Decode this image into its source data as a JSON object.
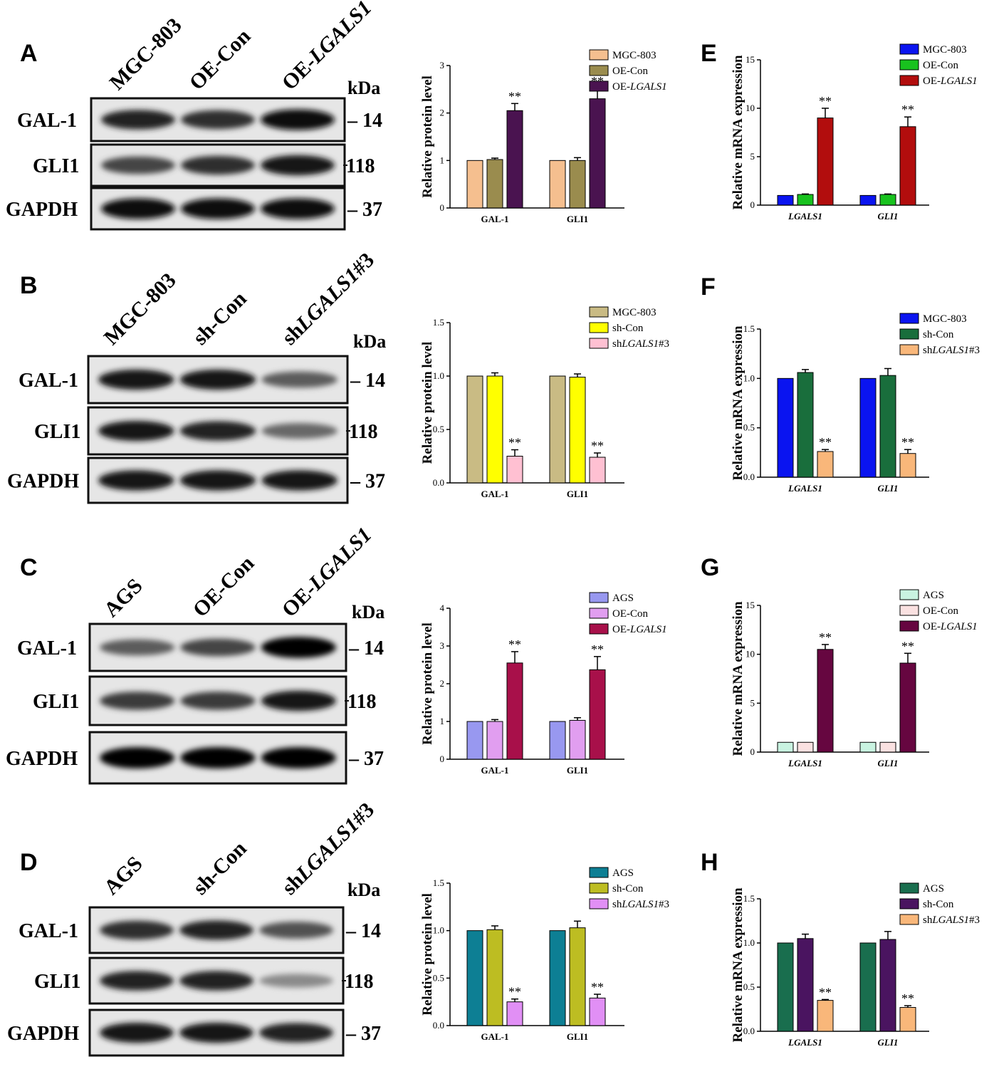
{
  "blots": [
    {
      "letter": "A",
      "lanes": [
        {
          "pre": "MGC-803",
          "it": ""
        },
        {
          "pre": "OE-Con",
          "it": ""
        },
        {
          "pre": "OE-",
          "it": "LGALS1"
        }
      ],
      "kda": "kDa",
      "rows": [
        {
          "label": "GAL-1",
          "mw": "14",
          "intensity": [
            0.85,
            0.8,
            0.95
          ]
        },
        {
          "label": "GLI1",
          "mw": "118",
          "intensity": [
            0.7,
            0.8,
            0.9
          ]
        },
        {
          "label": "GAPDH",
          "mw": "37",
          "intensity": [
            0.95,
            0.95,
            0.95
          ]
        }
      ]
    },
    {
      "letter": "B",
      "lanes": [
        {
          "pre": "MGC-803",
          "it": ""
        },
        {
          "pre": "sh-Con",
          "it": ""
        },
        {
          "pre": "sh",
          "it": "LGALS1",
          "post": "#3"
        }
      ],
      "kda": "kDa",
      "rows": [
        {
          "label": "GAL-1",
          "mw": "14",
          "intensity": [
            0.9,
            0.9,
            0.6
          ]
        },
        {
          "label": "GLI1",
          "mw": "118",
          "intensity": [
            0.9,
            0.85,
            0.55
          ]
        },
        {
          "label": "GAPDH",
          "mw": "37",
          "intensity": [
            0.9,
            0.9,
            0.9
          ]
        }
      ]
    },
    {
      "letter": "C",
      "lanes": [
        {
          "pre": "AGS",
          "it": ""
        },
        {
          "pre": "OE-Con",
          "it": ""
        },
        {
          "pre": "OE-",
          "it": "LGALS1"
        }
      ],
      "kda": "kDa",
      "rows": [
        {
          "label": "GAL-1",
          "mw": "14",
          "intensity": [
            0.6,
            0.7,
            0.98
          ]
        },
        {
          "label": "GLI1",
          "mw": "118",
          "intensity": [
            0.75,
            0.75,
            0.9
          ]
        },
        {
          "label": "GAPDH",
          "mw": "37",
          "intensity": [
            1.0,
            1.0,
            1.0
          ]
        }
      ]
    },
    {
      "letter": "D",
      "lanes": [
        {
          "pre": "AGS",
          "it": ""
        },
        {
          "pre": "sh-Con",
          "it": ""
        },
        {
          "pre": "sh",
          "it": "LGALS1",
          "post": "#3"
        }
      ],
      "kda": "kDa",
      "rows": [
        {
          "label": "GAL-1",
          "mw": "14",
          "intensity": [
            0.8,
            0.85,
            0.65
          ]
        },
        {
          "label": "GLI1",
          "mw": "118",
          "intensity": [
            0.85,
            0.85,
            0.4
          ]
        },
        {
          "label": "GAPDH",
          "mw": "37",
          "intensity": [
            0.9,
            0.9,
            0.85
          ]
        }
      ]
    }
  ],
  "chart_data": [
    {
      "type": "bar",
      "ylabel": "Relative protein level",
      "ylim": [
        0,
        3
      ],
      "yticks": [
        "0",
        "1",
        "2",
        "3"
      ],
      "categories": [
        {
          "text": "GAL-1",
          "italic": false
        },
        {
          "text": "GLI1",
          "italic": false
        }
      ],
      "series": [
        {
          "name": "MGC-803",
          "color": "#f5bf8f",
          "values": [
            1.0,
            1.0
          ],
          "errors": [
            0,
            0
          ],
          "sig": [
            "",
            ""
          ]
        },
        {
          "name": "OE-Con",
          "color": "#9a8c4e",
          "values": [
            1.02,
            1.0
          ],
          "errors": [
            0.03,
            0.06
          ],
          "sig": [
            "",
            ""
          ]
        },
        {
          "name": "OE-LGALS1",
          "color": "#4a1350",
          "values": [
            2.05,
            2.3
          ],
          "errors": [
            0.15,
            0.22
          ],
          "sig": [
            "**",
            "**"
          ]
        }
      ],
      "legend": "top-right"
    },
    {
      "type": "bar",
      "ylabel": "Relative protein level",
      "ylim": [
        0,
        1.5
      ],
      "yticks": [
        "0.0",
        "0.5",
        "1.0",
        "1.5"
      ],
      "categories": [
        {
          "text": "GAL-1",
          "italic": false
        },
        {
          "text": "GLI1",
          "italic": false
        }
      ],
      "series": [
        {
          "name": "MGC-803",
          "color": "#c9bb84",
          "values": [
            1.0,
            1.0
          ],
          "errors": [
            0,
            0
          ],
          "sig": [
            "",
            ""
          ]
        },
        {
          "name": "sh-Con",
          "color": "#ffff00",
          "values": [
            1.0,
            0.99
          ],
          "errors": [
            0.03,
            0.03
          ],
          "sig": [
            "",
            ""
          ]
        },
        {
          "name": "shLGALS1#3",
          "color": "#ffc0d2",
          "values": [
            0.25,
            0.24
          ],
          "errors": [
            0.06,
            0.04
          ],
          "sig": [
            "**",
            "**"
          ]
        }
      ],
      "legend": "top-right"
    },
    {
      "type": "bar",
      "ylabel": "Relative protein level",
      "ylim": [
        0,
        4
      ],
      "yticks": [
        "0",
        "1",
        "2",
        "3",
        "4"
      ],
      "categories": [
        {
          "text": "GAL-1",
          "italic": false
        },
        {
          "text": "GLI1",
          "italic": false
        }
      ],
      "series": [
        {
          "name": "AGS",
          "color": "#9898f0",
          "values": [
            1.0,
            1.0
          ],
          "errors": [
            0,
            0
          ],
          "sig": [
            "",
            ""
          ]
        },
        {
          "name": "OE-Con",
          "color": "#e19ef0",
          "values": [
            1.0,
            1.03
          ],
          "errors": [
            0.05,
            0.07
          ],
          "sig": [
            "",
            ""
          ]
        },
        {
          "name": "OE-LGALS1",
          "color": "#a8104a",
          "values": [
            2.55,
            2.37
          ],
          "errors": [
            0.3,
            0.35
          ],
          "sig": [
            "**",
            "**"
          ]
        }
      ],
      "legend": "top-right"
    },
    {
      "type": "bar",
      "ylabel": "Relative protein level",
      "ylim": [
        0,
        1.5
      ],
      "yticks": [
        "0.0",
        "0.5",
        "1.0",
        "1.5"
      ],
      "categories": [
        {
          "text": "GAL-1",
          "italic": false
        },
        {
          "text": "GLI1",
          "italic": false
        }
      ],
      "series": [
        {
          "name": "AGS",
          "color": "#0d7f94",
          "values": [
            1.0,
            1.0
          ],
          "errors": [
            0,
            0
          ],
          "sig": [
            "",
            ""
          ]
        },
        {
          "name": "sh-Con",
          "color": "#bdbd22",
          "values": [
            1.01,
            1.03
          ],
          "errors": [
            0.04,
            0.07
          ],
          "sig": [
            "",
            ""
          ]
        },
        {
          "name": "shLGALS1#3",
          "color": "#e18ff5",
          "values": [
            0.25,
            0.29
          ],
          "errors": [
            0.03,
            0.04
          ],
          "sig": [
            "**",
            "**"
          ]
        }
      ],
      "legend": "top-right"
    },
    {
      "type": "bar",
      "letter": "E",
      "ylabel": "Relative mRNA expression",
      "ylim": [
        0,
        15
      ],
      "yticks": [
        "0",
        "5",
        "10",
        "15"
      ],
      "categories": [
        {
          "text": "LGALS1",
          "italic": true
        },
        {
          "text": "GLI1",
          "italic": true
        }
      ],
      "series": [
        {
          "name": "MGC-803",
          "color": "#0a14f0",
          "values": [
            1.0,
            1.0
          ],
          "errors": [
            0,
            0
          ],
          "sig": [
            "",
            ""
          ]
        },
        {
          "name": "OE-Con",
          "color": "#18c21e",
          "values": [
            1.1,
            1.1
          ],
          "errors": [
            0.05,
            0.05
          ],
          "sig": [
            "",
            ""
          ]
        },
        {
          "name": "OE-LGALS1",
          "color": "#b20d0d",
          "values": [
            9.0,
            8.1
          ],
          "errors": [
            1.0,
            1.0
          ],
          "sig": [
            "**",
            "**"
          ]
        }
      ],
      "legend": "top-right"
    },
    {
      "type": "bar",
      "letter": "F",
      "ylabel": "Relative mRNA expression",
      "ylim": [
        0,
        1.5
      ],
      "yticks": [
        "0.0",
        "0.5",
        "1.0",
        "1.5"
      ],
      "categories": [
        {
          "text": "LGALS1",
          "italic": true
        },
        {
          "text": "GLI1",
          "italic": true
        }
      ],
      "series": [
        {
          "name": "MGC-803",
          "color": "#0a14f0",
          "values": [
            1.0,
            1.0
          ],
          "errors": [
            0,
            0
          ],
          "sig": [
            "",
            ""
          ]
        },
        {
          "name": "sh-Con",
          "color": "#196e3c",
          "values": [
            1.06,
            1.03
          ],
          "errors": [
            0.03,
            0.07
          ],
          "sig": [
            "",
            ""
          ]
        },
        {
          "name": "shLGALS1#3",
          "color": "#f9b77a",
          "values": [
            0.26,
            0.24
          ],
          "errors": [
            0.02,
            0.04
          ],
          "sig": [
            "**",
            "**"
          ]
        }
      ],
      "legend": "top-right"
    },
    {
      "type": "bar",
      "letter": "G",
      "ylabel": "Relative mRNA expression",
      "ylim": [
        0,
        15
      ],
      "yticks": [
        "0",
        "5",
        "10",
        "15"
      ],
      "categories": [
        {
          "text": "LGALS1",
          "italic": true
        },
        {
          "text": "GLI1",
          "italic": true
        }
      ],
      "series": [
        {
          "name": "AGS",
          "color": "#c9f3e1",
          "values": [
            1.0,
            1.0
          ],
          "errors": [
            0,
            0
          ],
          "sig": [
            "",
            ""
          ]
        },
        {
          "name": "OE-Con",
          "color": "#fae1e1",
          "values": [
            1.0,
            1.0
          ],
          "errors": [
            0,
            0
          ],
          "sig": [
            "",
            ""
          ]
        },
        {
          "name": "OE-LGALS1",
          "color": "#660640",
          "values": [
            10.5,
            9.1
          ],
          "errors": [
            0.5,
            1.0
          ],
          "sig": [
            "**",
            "**"
          ]
        }
      ],
      "legend": "top-right"
    },
    {
      "type": "bar",
      "letter": "H",
      "ylabel": "Relative mRNA expression",
      "ylim": [
        0,
        1.5
      ],
      "yticks": [
        "0.0",
        "0.5",
        "1.0",
        "1.5"
      ],
      "categories": [
        {
          "text": "LGALS1",
          "italic": true
        },
        {
          "text": "GLI1",
          "italic": true
        }
      ],
      "series": [
        {
          "name": "AGS",
          "color": "#196e4e",
          "values": [
            1.0,
            1.0
          ],
          "errors": [
            0,
            0
          ],
          "sig": [
            "",
            ""
          ]
        },
        {
          "name": "sh-Con",
          "color": "#4a1460",
          "values": [
            1.05,
            1.04
          ],
          "errors": [
            0.05,
            0.09
          ],
          "sig": [
            "",
            ""
          ]
        },
        {
          "name": "shLGALS1#3",
          "color": "#f9b77a",
          "values": [
            0.35,
            0.27
          ],
          "errors": [
            0.01,
            0.02
          ],
          "sig": [
            "**",
            "**"
          ]
        }
      ],
      "legend": "top-right"
    }
  ]
}
